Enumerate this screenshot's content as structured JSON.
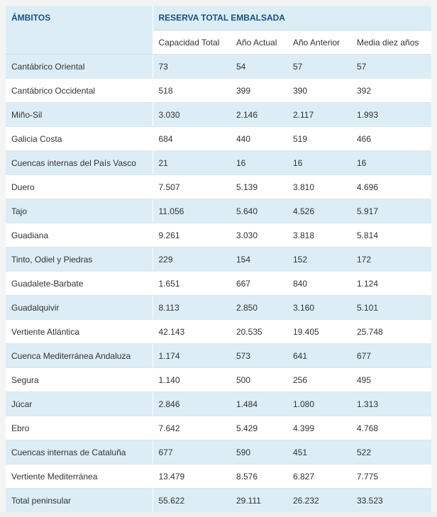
{
  "table": {
    "header_ambitos": "ÁMBITOS",
    "header_group": "RESERVA TOTAL EMBALSADA",
    "columns": [
      "Capacidad Total",
      "Año Actual",
      "Año Anterior",
      "Media diez años"
    ],
    "rows": [
      {
        "name": "Cantábrico Oriental",
        "values": [
          "73",
          "54",
          "57",
          "57"
        ]
      },
      {
        "name": "Cantábrico Occidental",
        "values": [
          "518",
          "399",
          "390",
          "392"
        ]
      },
      {
        "name": "Miño-Sil",
        "values": [
          "3.030",
          "2.146",
          "2.117",
          "1.993"
        ]
      },
      {
        "name": "Galicia Costa",
        "values": [
          "684",
          "440",
          "519",
          "466"
        ]
      },
      {
        "name": "Cuencas internas del País Vasco",
        "values": [
          "21",
          "16",
          "16",
          "16"
        ]
      },
      {
        "name": "Duero",
        "values": [
          "7.507",
          "5.139",
          "3.810",
          "4.696"
        ]
      },
      {
        "name": "Tajo",
        "values": [
          "11.056",
          "5.640",
          "4.526",
          "5.917"
        ]
      },
      {
        "name": "Guadiana",
        "values": [
          "9.261",
          "3.030",
          "3.818",
          "5.814"
        ]
      },
      {
        "name": "Tinto, Odiel y Piedras",
        "values": [
          "229",
          "154",
          "152",
          "172"
        ]
      },
      {
        "name": "Guadalete-Barbate",
        "values": [
          "1.651",
          "667",
          "840",
          "1.124"
        ]
      },
      {
        "name": "Guadalquivir",
        "values": [
          "8.113",
          "2.850",
          "3.160",
          "5.101"
        ]
      },
      {
        "name": "Vertiente Atlántica",
        "values": [
          "42.143",
          "20.535",
          "19.405",
          "25.748"
        ]
      },
      {
        "name": "Cuenca Mediterránea Andaluza",
        "values": [
          "1.174",
          "573",
          "641",
          "677"
        ]
      },
      {
        "name": "Segura",
        "values": [
          "1.140",
          "500",
          "256",
          "495"
        ]
      },
      {
        "name": "Júcar",
        "values": [
          "2.846",
          "1.484",
          "1.080",
          "1.313"
        ]
      },
      {
        "name": "Ebro",
        "values": [
          "7.642",
          "5.429",
          "4.399",
          "4.768"
        ]
      },
      {
        "name": "Cuencas internas de Cataluña",
        "values": [
          "677",
          "590",
          "451",
          "522"
        ]
      },
      {
        "name": "Vertiente Mediterránea",
        "values": [
          "13.479",
          "8.576",
          "6.827",
          "7.775"
        ]
      },
      {
        "name": "Total peninsular",
        "values": [
          "55.622",
          "29.111",
          "26.232",
          "33.523"
        ]
      }
    ]
  }
}
